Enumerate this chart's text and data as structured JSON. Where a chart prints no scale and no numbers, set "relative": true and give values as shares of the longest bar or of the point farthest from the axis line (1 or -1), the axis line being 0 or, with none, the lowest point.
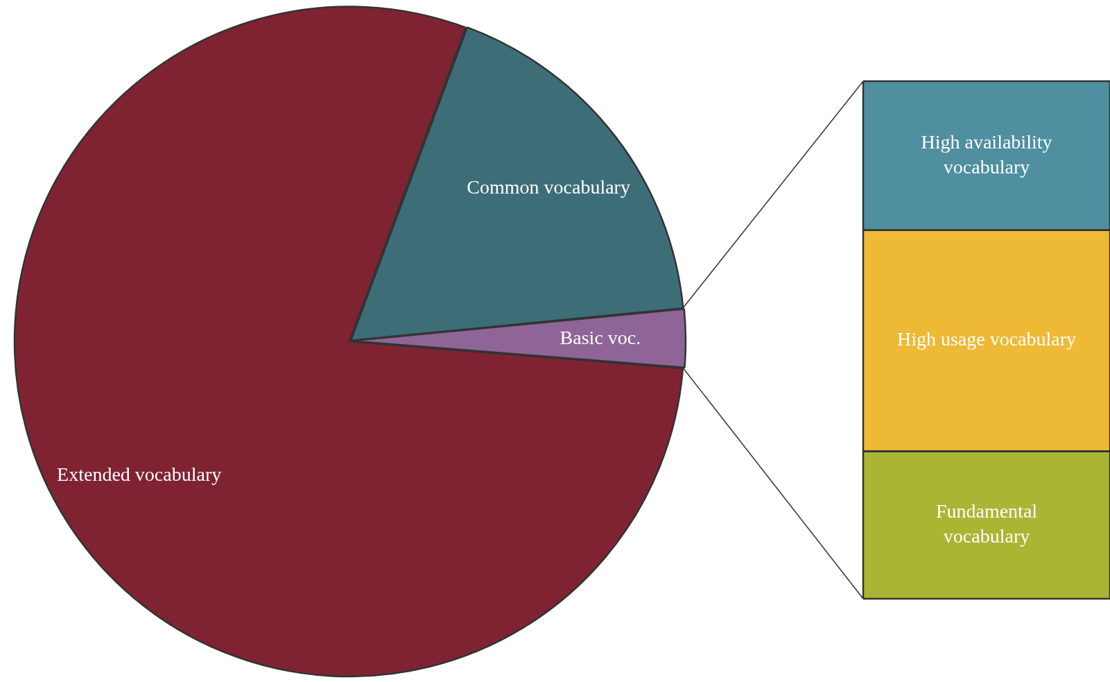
{
  "chart_data": [
    {
      "type": "pie",
      "categories": [
        "Common vocabulary",
        "Basic voc.",
        "Extended vocabulary"
      ],
      "values": [
        17.8,
        2.8,
        79.4
      ],
      "colors": [
        "#3d6e78",
        "#8e6596",
        "#7f2333"
      ]
    },
    {
      "type": "bar",
      "stacked": true,
      "relative": true,
      "categories": [
        null
      ],
      "series": [
        {
          "name": "Fundamental vocabulary",
          "color": "#abb534",
          "values": [
            0.285
          ]
        },
        {
          "name": "High usage vocabulary",
          "color": "#eeb935",
          "values": [
            0.427
          ]
        },
        {
          "name": "High availability vocabulary",
          "color": "#4f8fa0",
          "values": [
            0.288
          ]
        }
      ]
    }
  ]
}
